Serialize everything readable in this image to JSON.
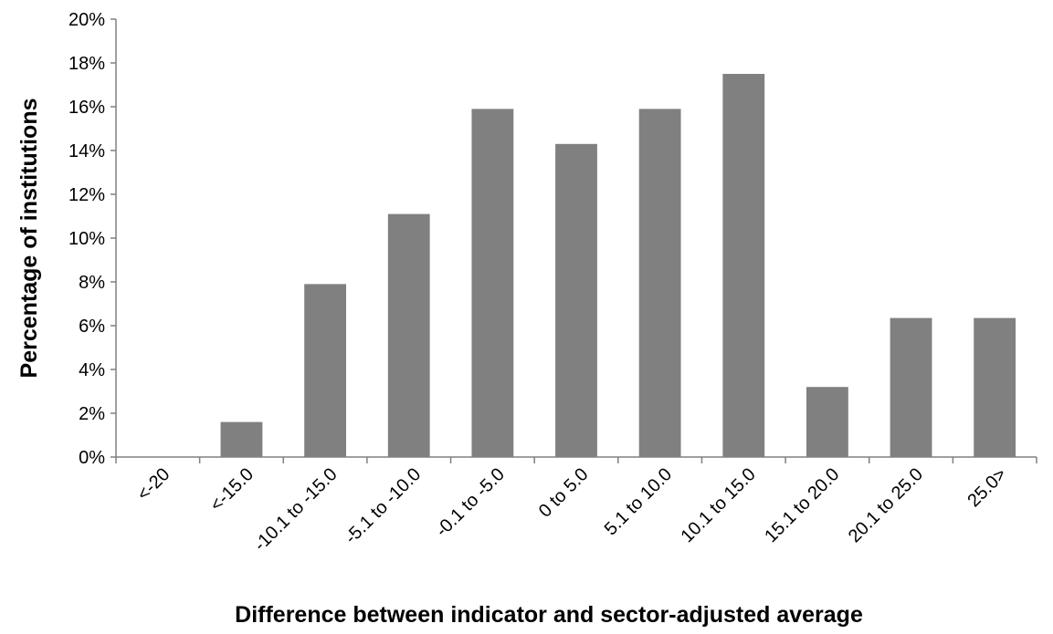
{
  "chart_data": {
    "type": "bar",
    "title": "",
    "xlabel": "Difference between indicator and sector-adjusted average",
    "ylabel": "Percentage of institutions",
    "categories": [
      "<-20",
      "<-15.0",
      "-10.1 to -15.0",
      "-5.1 to -10.0",
      "-0.1 to -5.0",
      "0 to 5.0",
      "5.1 to 10.0",
      "10.1 to 15.0",
      "15.1 to 20.0",
      "20.1 to 25.0",
      "25.0>"
    ],
    "values": [
      0.0,
      1.6,
      7.9,
      11.1,
      15.9,
      14.3,
      15.9,
      17.5,
      3.2,
      6.35,
      6.35
    ],
    "ylim": [
      0,
      20
    ],
    "yticks": [
      "0%",
      "2%",
      "4%",
      "6%",
      "8%",
      "10%",
      "12%",
      "14%",
      "16%",
      "18%",
      "20%"
    ],
    "grid": false,
    "legend": "none",
    "bar_color": "#808080"
  }
}
